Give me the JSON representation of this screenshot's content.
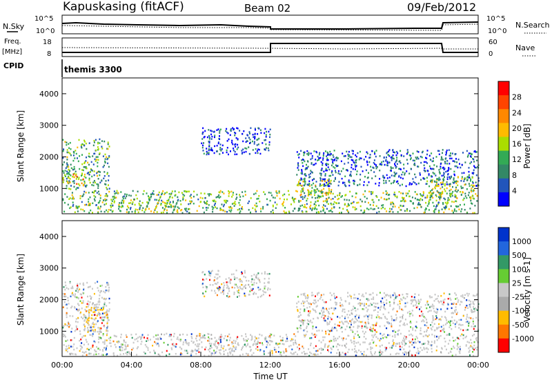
{
  "header": {
    "radar": "Kapuskasing (fitACF)",
    "beam": "Beam 02",
    "date": "09/Feb/2012"
  },
  "labels": {
    "nsky": "N.Sky",
    "nsearch": "N.Search",
    "freq_line1": "Freq.",
    "freq_line2": "[MHz]",
    "nave": "Nave",
    "cpid": "CPID",
    "cpid_value": "themis 3300"
  },
  "scale_ticks": {
    "noise_left": [
      "10^5",
      "10^0"
    ],
    "noise_right": [
      "10^5",
      "10^0"
    ],
    "freq_left": [
      "18",
      "8"
    ],
    "nave_right": [
      "60",
      "0"
    ]
  },
  "colors": {
    "power": [
      "#0000ff",
      "#2255bb",
      "#338866",
      "#33aa55",
      "#aadd00",
      "#ffbb00",
      "#ff8800",
      "#ff4400",
      "#ff0000"
    ],
    "velocity": [
      "#0033cc",
      "#2266dd",
      "#339966",
      "#66cc33",
      "#c8c8c8",
      "#aaaaaa",
      "#ffbb00",
      "#ff7700",
      "#ff0000"
    ]
  },
  "chart_data": [
    {
      "type": "heatmap",
      "name": "power",
      "xlabel": "",
      "ylabel": "Slant Range [km]",
      "yticks": [
        "1000",
        "2000",
        "3000",
        "4000"
      ],
      "ylim": [
        200,
        4500
      ],
      "colorbar_label": "Power [dB]",
      "colorbar_ticks": [
        "4",
        "8",
        "12",
        "16",
        "20",
        "24",
        "28"
      ],
      "colorbar_range": [
        0,
        32
      ],
      "regions": [
        {
          "t0": 0.0,
          "t1": 2.7,
          "r0": 1000,
          "r1": 2600,
          "level": 0.35
        },
        {
          "t0": 0.0,
          "t1": 1.2,
          "r0": 1150,
          "r1": 1500,
          "level": 0.65
        },
        {
          "t0": 8.0,
          "t1": 12.0,
          "r0": 2100,
          "r1": 2950,
          "level": 0.1
        },
        {
          "t0": 13.5,
          "t1": 24.0,
          "r0": 1100,
          "r1": 2250,
          "level": 0.15
        },
        {
          "t0": 13.5,
          "t1": 15.5,
          "r0": 800,
          "r1": 1300,
          "level": 0.5
        },
        {
          "t0": 21.0,
          "t1": 24.0,
          "r0": 700,
          "r1": 1400,
          "level": 0.45
        },
        {
          "t0": 0.0,
          "t1": 24.0,
          "r0": 250,
          "r1": 950,
          "level": 0.4
        }
      ]
    },
    {
      "type": "heatmap",
      "name": "velocity",
      "xlabel": "Time UT",
      "ylabel": "Slant Range [km]",
      "yticks": [
        "1000",
        "2000",
        "3000",
        "4000"
      ],
      "ylim": [
        200,
        4500
      ],
      "xticks": [
        "00:00",
        "04:00",
        "08:00",
        "12:00",
        "16:00",
        "20:00",
        "00:00"
      ],
      "xlim": [
        0,
        24
      ],
      "colorbar_label": "Velocity [m s-1]",
      "colorbar_ticks": [
        "1000",
        "500",
        "100",
        "25",
        "-25",
        "-100",
        "-500",
        "-1000"
      ],
      "regions": [
        {
          "t0": 0.0,
          "t1": 2.7,
          "r0": 1000,
          "r1": 2600,
          "level": 0.5
        },
        {
          "t0": 1.2,
          "t1": 2.6,
          "r0": 900,
          "r1": 1800,
          "level": 0.75
        },
        {
          "t0": 8.0,
          "t1": 12.0,
          "r0": 2100,
          "r1": 2950,
          "level": 0.5
        },
        {
          "t0": 13.5,
          "t1": 24.0,
          "r0": 1000,
          "r1": 2250,
          "level": 0.5
        },
        {
          "t0": 0.0,
          "t1": 24.0,
          "r0": 250,
          "r1": 950,
          "level": 0.5
        }
      ]
    }
  ]
}
